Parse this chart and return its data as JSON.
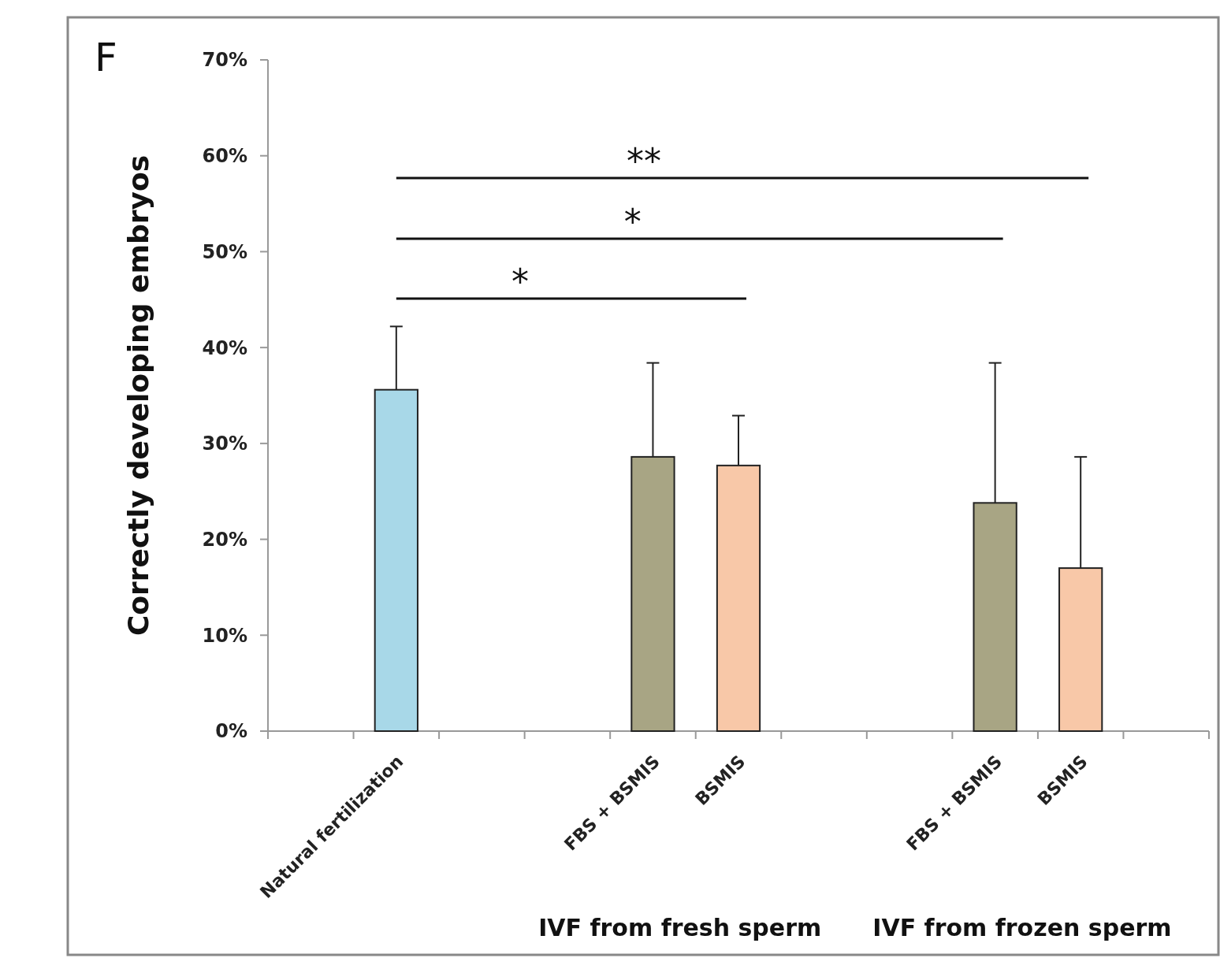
{
  "chart_data": {
    "type": "bar",
    "ylabel": "Correctly developing embryos",
    "categories": [
      null,
      "Natural fertilization",
      null,
      null,
      "FBS + BSMIS",
      "BSMIS",
      null,
      null,
      "FBS + BSMIS",
      "BSMIS",
      null
    ],
    "values": [
      null,
      35.6,
      null,
      null,
      28.6,
      27.7,
      null,
      null,
      23.8,
      17.0,
      null
    ],
    "colors": [
      null,
      "#a8d8e8",
      null,
      null,
      "#a8a584",
      "#f8c8a8",
      null,
      null,
      "#a8a584",
      "#f8c8a8",
      null
    ],
    "errors": [
      null,
      [
        35.6,
        42.2
      ],
      null,
      null,
      [
        28.6,
        38.4
      ],
      [
        27.7,
        32.9
      ],
      null,
      null,
      [
        23.8,
        38.4
      ],
      [
        17.0,
        28.6
      ],
      null
    ],
    "ylim": [
      0,
      70
    ],
    "yticks": [
      {
        "value": 0,
        "label": "0%"
      },
      {
        "value": 10,
        "label": "10%"
      },
      {
        "value": 20,
        "label": "20%"
      },
      {
        "value": 30,
        "label": "30%"
      },
      {
        "value": 40,
        "label": "40%"
      },
      {
        "value": 50,
        "label": "50%"
      },
      {
        "value": 60,
        "label": "60%"
      },
      {
        "value": 70,
        "label": "70%"
      }
    ],
    "grid": false,
    "annotations": [
      "F",
      "*",
      "*",
      "**",
      "IVF from fresh sperm",
      "IVF from frozen sperm"
    ]
  }
}
